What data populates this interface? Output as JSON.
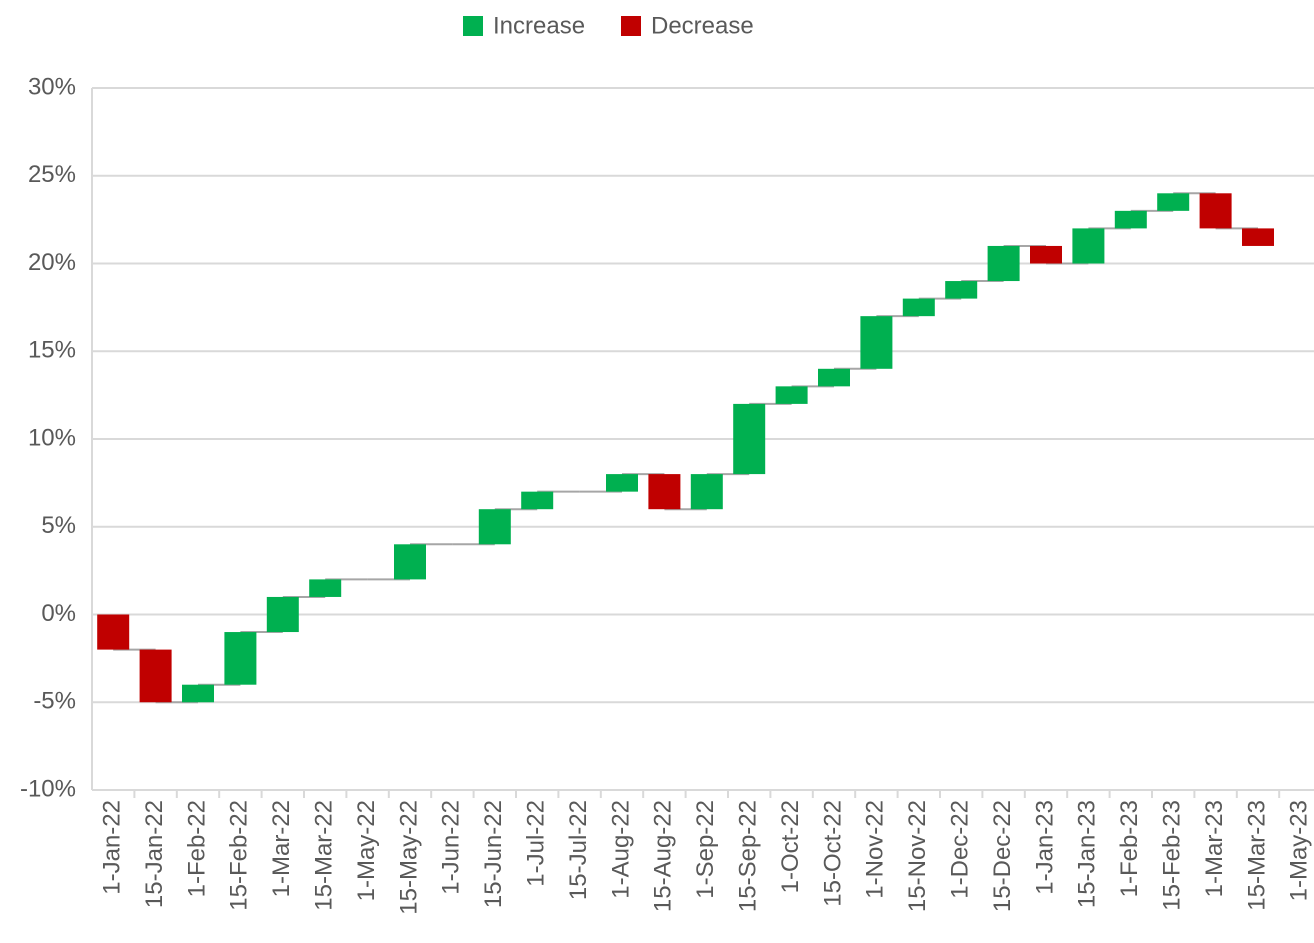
{
  "chart_data": {
    "type": "waterfall",
    "legend": [
      {
        "name": "Increase",
        "color": "#00b050"
      },
      {
        "name": "Decrease",
        "color": "#c00000"
      }
    ],
    "categories": [
      "1-Jan-22",
      "15-Jan-22",
      "1-Feb-22",
      "15-Feb-22",
      "1-Mar-22",
      "15-Mar-22",
      "1-May-22",
      "15-May-22",
      "1-Jun-22",
      "15-Jun-22",
      "1-Jul-22",
      "15-Jul-22",
      "1-Aug-22",
      "15-Aug-22",
      "1-Sep-22",
      "15-Sep-22",
      "1-Oct-22",
      "15-Oct-22",
      "1-Nov-22",
      "15-Nov-22",
      "1-Dec-22",
      "15-Dec-22",
      "1-Jan-23",
      "15-Jan-23",
      "1-Feb-23",
      "15-Feb-23",
      "1-Mar-23",
      "15-Mar-23",
      "1-May-23"
    ],
    "values": [
      -2,
      -3,
      1,
      3,
      2,
      1,
      0,
      2,
      0,
      2,
      1,
      0,
      1,
      -2,
      2,
      4,
      1,
      1,
      3,
      1,
      1,
      2,
      -1,
      2,
      1,
      1,
      -2,
      -1,
      null
    ],
    "ylim": [
      -10,
      30
    ],
    "yticks": [
      {
        "value": -10,
        "label": "-10%"
      },
      {
        "value": -5,
        "label": "-5%"
      },
      {
        "value": 0,
        "label": "0%"
      },
      {
        "value": 5,
        "label": "5%"
      },
      {
        "value": 10,
        "label": "10%"
      },
      {
        "value": 15,
        "label": "15%"
      },
      {
        "value": 20,
        "label": "20%"
      },
      {
        "value": 25,
        "label": "25%"
      },
      {
        "value": 30,
        "label": "30%"
      }
    ],
    "grid": true
  }
}
